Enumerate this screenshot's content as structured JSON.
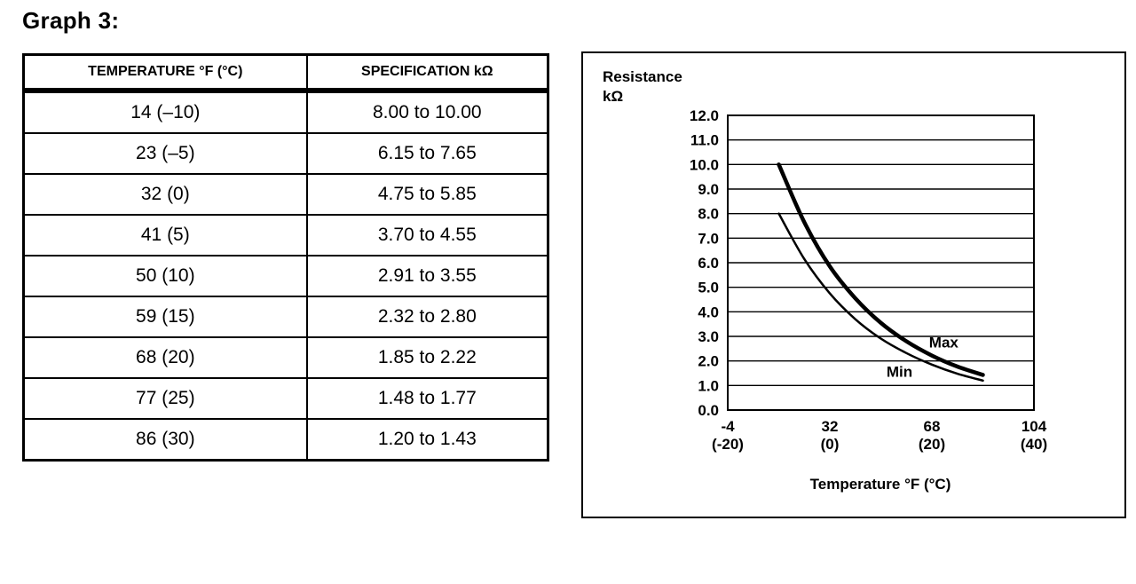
{
  "page": {
    "title": "Graph 3:"
  },
  "table": {
    "headers": [
      "TEMPERATURE °F (°C)",
      "SPECIFICATION kΩ"
    ],
    "rows": [
      [
        "14 (–10)",
        "8.00 to 10.00"
      ],
      [
        "23 (–5)",
        "6.15 to 7.65"
      ],
      [
        "32 (0)",
        "4.75 to 5.85"
      ],
      [
        "41 (5)",
        "3.70 to 4.55"
      ],
      [
        "50 (10)",
        "2.91 to 3.55"
      ],
      [
        "59 (15)",
        "2.32 to 2.80"
      ],
      [
        "68 (20)",
        "1.85 to 2.22"
      ],
      [
        "77 (25)",
        "1.48 to 1.77"
      ],
      [
        "86 (30)",
        "1.20 to 1.43"
      ]
    ]
  },
  "chart_data": {
    "type": "line",
    "ylabel": "Resistance kΩ",
    "ylabel_lines": [
      "Resistance",
      "kΩ"
    ],
    "xlabel": "Temperature °F (°C)",
    "x": [
      14,
      23,
      32,
      41,
      50,
      59,
      68,
      77,
      86
    ],
    "series": [
      {
        "name": "Max",
        "values": [
          10.0,
          7.65,
          5.85,
          4.55,
          3.55,
          2.8,
          2.22,
          1.77,
          1.43
        ],
        "stroke_width": 4.5
      },
      {
        "name": "Min",
        "values": [
          8.0,
          6.15,
          4.75,
          3.7,
          2.91,
          2.32,
          1.85,
          1.48,
          1.2
        ],
        "stroke_width": 2.5
      }
    ],
    "xlim": [
      -4,
      104
    ],
    "ylim": [
      0,
      12
    ],
    "y_ticks": [
      "12.0",
      "11.0",
      "10.0",
      "9.0",
      "8.0",
      "7.0",
      "6.0",
      "5.0",
      "4.0",
      "3.0",
      "2.0",
      "1.0",
      "0.0"
    ],
    "x_ticks": [
      {
        "f": "-4",
        "c": "(-20)",
        "value": -4
      },
      {
        "f": "32",
        "c": "(0)",
        "value": 32
      },
      {
        "f": "68",
        "c": "(20)",
        "value": 68
      },
      {
        "f": "104",
        "c": "(40)",
        "value": 104
      }
    ],
    "grid": "horizontal",
    "legend_position": "inline-labels",
    "series_labels": [
      {
        "text": "Max",
        "x": 67,
        "y": 2.55
      },
      {
        "text": "Min",
        "x": 52,
        "y": 1.35
      }
    ],
    "line_color": "#000000",
    "grid_color": "#000000"
  }
}
